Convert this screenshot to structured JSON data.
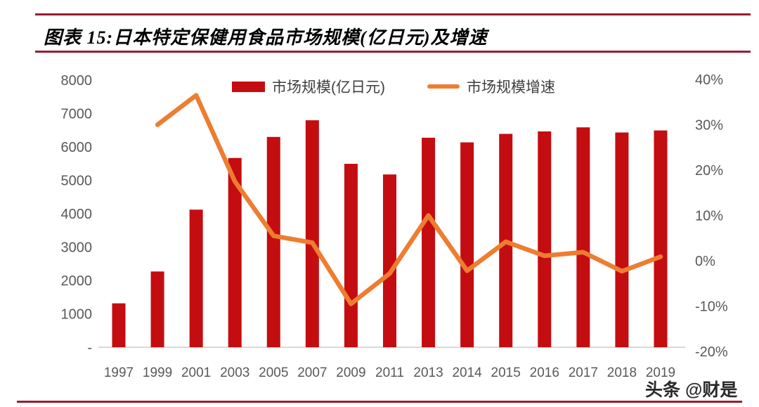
{
  "header": {
    "title": "图表 15:日本特定保健用食品市场规模(亿日元)及增速",
    "rule_color": "#9b1b33"
  },
  "legend": {
    "items": [
      {
        "label": "市场规模(亿日元)",
        "type": "bar",
        "color": "#c40d10"
      },
      {
        "label": "市场规模增速",
        "type": "line",
        "color": "#ed7d31"
      }
    ]
  },
  "chart_data": {
    "type": "combo",
    "categories": [
      "1997",
      "1999",
      "2001",
      "2003",
      "2005",
      "2007",
      "2009",
      "2011",
      "2013",
      "2014",
      "2015",
      "2016",
      "2017",
      "2018",
      "2019"
    ],
    "series": [
      {
        "name": "市场规模(亿日元)",
        "type": "bar",
        "axis": "left",
        "color": "#c40d10",
        "values": [
          1315,
          2269,
          4121,
          5669,
          6299,
          6798,
          5494,
          5175,
          6275,
          6136,
          6391,
          6464,
          6586,
          6432,
          6493
        ]
      },
      {
        "name": "市场规模增速",
        "type": "line",
        "axis": "right",
        "color": "#ed7d31",
        "values": [
          null,
          30.0,
          36.5,
          17.5,
          5.5,
          4.0,
          -9.5,
          -2.8,
          10.0,
          -2.2,
          4.2,
          1.1,
          1.9,
          -2.3,
          0.9
        ]
      }
    ],
    "left_axis": {
      "tick_labels": [
        "8000",
        "7000",
        "6000",
        "5000",
        "4000",
        "3000",
        "2000",
        "1000",
        "-"
      ],
      "tick_values": [
        8000,
        7000,
        6000,
        5000,
        4000,
        3000,
        2000,
        1000,
        0
      ],
      "min": 0,
      "max": 8000,
      "text_color": "#595959"
    },
    "right_axis": {
      "tick_labels": [
        "40%",
        "30%",
        "20%",
        "10%",
        "0%",
        "-10%",
        "-20%"
      ],
      "tick_values": [
        40,
        30,
        20,
        10,
        0,
        -10,
        -20
      ],
      "min": -20,
      "max": 40,
      "unit": "%",
      "text_color": "#595959"
    },
    "baseline_color": "#d9d9d9",
    "grid": false,
    "legend_position": "top"
  },
  "watermark": {
    "text": "头条 @财是"
  }
}
